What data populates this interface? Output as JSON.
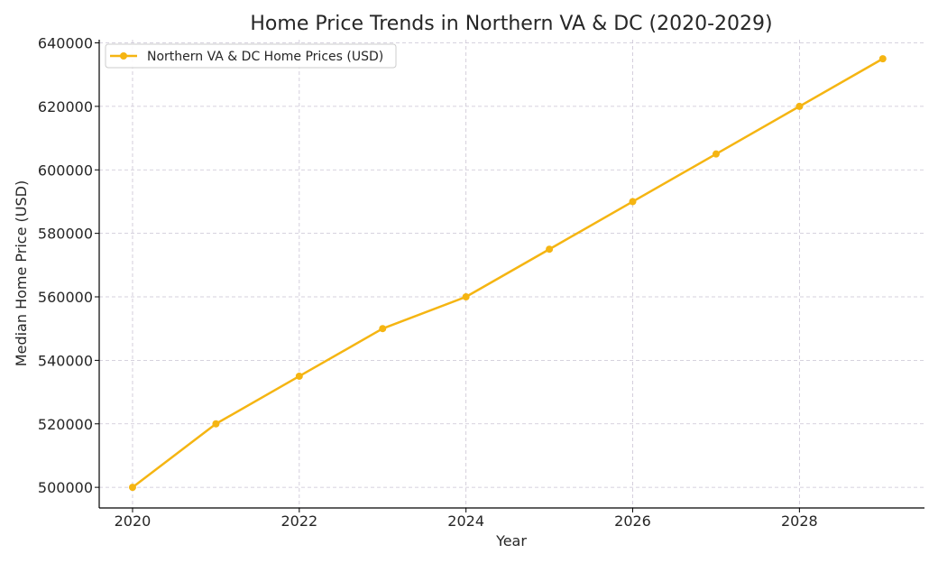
{
  "chart_data": {
    "type": "line",
    "title": "Home Price Trends in Northern VA & DC (2020-2029)",
    "xlabel": "Year",
    "ylabel": "Median Home Price (USD)",
    "x": [
      2020,
      2021,
      2022,
      2023,
      2024,
      2025,
      2026,
      2027,
      2028,
      2029
    ],
    "xlim": [
      2019.6,
      2029.5
    ],
    "ylim": [
      493500,
      641000
    ],
    "x_ticks": [
      2020,
      2022,
      2024,
      2026,
      2028
    ],
    "y_ticks": [
      500000,
      520000,
      540000,
      560000,
      580000,
      600000,
      620000,
      640000
    ],
    "grid": true,
    "legend_position": "top-left",
    "series": [
      {
        "name": "Northern VA & DC Home Prices (USD)",
        "color": "#f5b512",
        "marker": "circle",
        "values": [
          500000,
          520000,
          535000,
          550000,
          560000,
          575000,
          590000,
          605000,
          620000,
          635000
        ]
      }
    ]
  }
}
